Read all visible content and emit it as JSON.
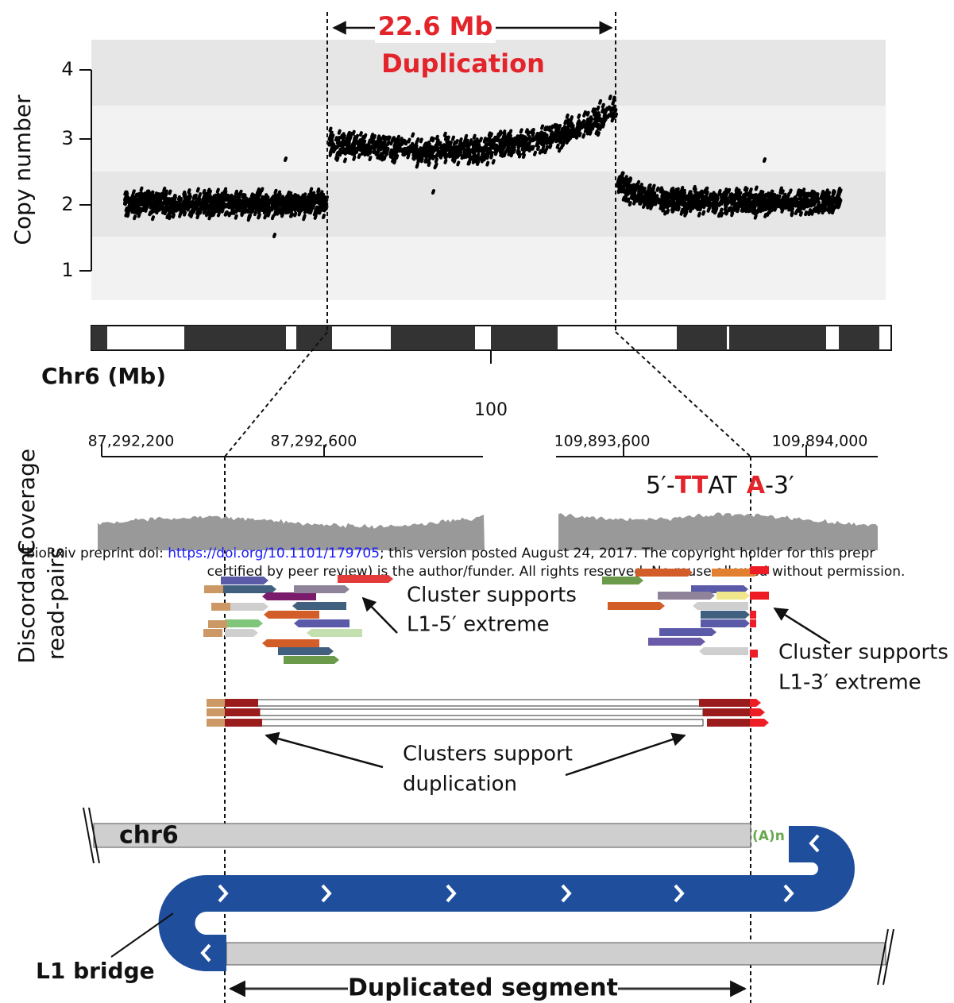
{
  "copy_number_panel": {
    "y_label": "Copy number",
    "ticks": [
      "1",
      "2",
      "3",
      "4"
    ],
    "span_label": "22.6 Mb",
    "event_label": "Duplication"
  },
  "ideogram": {
    "label": "Chr6 (Mb)",
    "tick": "100"
  },
  "zoom": {
    "left_ticks": [
      "87,292,200",
      "87,292,600"
    ],
    "right_ticks": [
      "109,893,600",
      "109,894,000"
    ],
    "motif": [
      "5′-",
      "TT",
      "AT",
      "A",
      "-3′"
    ],
    "coverage_label": "Coverage"
  },
  "reads": {
    "label_lines": [
      "Discordant",
      "read-pairs"
    ],
    "annotation_5p": [
      "Cluster supports",
      "L1-5′ extreme"
    ],
    "annotation_3p": [
      "Cluster supports",
      "L1-3′ extreme"
    ],
    "annotation_dup": [
      "Clusters support",
      "duplication"
    ]
  },
  "watermark": {
    "prefix": "bioRxiv preprint doi: ",
    "link": "https://doi.org/10.1101/179705",
    "suffix": "; this version posted August 24, 2017. The copyright holder for this prepr",
    "line2": "certified by peer review) is the author/funder. All rights reserved. No reuse allowed without permission."
  },
  "model": {
    "chr_label": "chr6",
    "polya": "(A)n",
    "bridge_label": "L1 bridge",
    "segment_label": "Duplicated segment"
  }
}
